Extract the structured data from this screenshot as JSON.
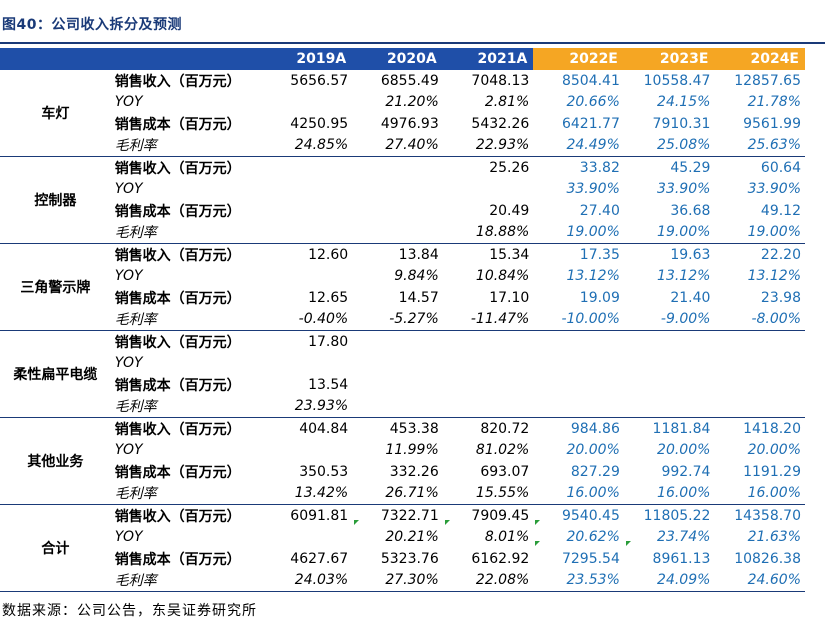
{
  "title": "图40：公司收入拆分及预测",
  "columns": {
    "hist": [
      "2019A",
      "2020A",
      "2021A"
    ],
    "forecast": [
      "2022E",
      "2023E",
      "2024E"
    ]
  },
  "segments": [
    {
      "name": "车灯",
      "rows": [
        {
          "label": "销售收入（百万元）",
          "values": [
            "5656.57",
            "6855.49",
            "7048.13",
            "8504.41",
            "10558.47",
            "12857.65"
          ]
        },
        {
          "label": "YOY",
          "values": [
            "",
            "21.20%",
            "2.81%",
            "20.66%",
            "24.15%",
            "21.78%"
          ]
        },
        {
          "label": "销售成本（百万元）",
          "values": [
            "4250.95",
            "4976.93",
            "5432.26",
            "6421.77",
            "7910.31",
            "9561.99"
          ]
        },
        {
          "label": "毛利率",
          "values": [
            "24.85%",
            "27.40%",
            "22.93%",
            "24.49%",
            "25.08%",
            "25.63%"
          ]
        }
      ]
    },
    {
      "name": "控制器",
      "rows": [
        {
          "label": "销售收入（百万元）",
          "values": [
            "",
            "",
            "25.26",
            "33.82",
            "45.29",
            "60.64"
          ]
        },
        {
          "label": "YOY",
          "values": [
            "",
            "",
            "",
            "33.90%",
            "33.90%",
            "33.90%"
          ]
        },
        {
          "label": "销售成本（百万元）",
          "values": [
            "",
            "",
            "20.49",
            "27.40",
            "36.68",
            "49.12"
          ]
        },
        {
          "label": "毛利率",
          "values": [
            "",
            "",
            "18.88%",
            "19.00%",
            "19.00%",
            "19.00%"
          ]
        }
      ]
    },
    {
      "name": "三角警示牌",
      "rows": [
        {
          "label": "销售收入（百万元）",
          "values": [
            "12.60",
            "13.84",
            "15.34",
            "17.35",
            "19.63",
            "22.20"
          ]
        },
        {
          "label": "YOY",
          "values": [
            "",
            "9.84%",
            "10.84%",
            "13.12%",
            "13.12%",
            "13.12%"
          ]
        },
        {
          "label": "销售成本（百万元）",
          "values": [
            "12.65",
            "14.57",
            "17.10",
            "19.09",
            "21.40",
            "23.98"
          ]
        },
        {
          "label": "毛利率",
          "values": [
            "-0.40%",
            "-5.27%",
            "-11.47%",
            "-10.00%",
            "-9.00%",
            "-8.00%"
          ]
        }
      ]
    },
    {
      "name": "柔性扁平电缆",
      "rows": [
        {
          "label": "销售收入（百万元）",
          "values": [
            "17.80",
            "",
            "",
            "",
            "",
            ""
          ]
        },
        {
          "label": "YOY",
          "values": [
            "",
            "",
            "",
            "",
            "",
            ""
          ]
        },
        {
          "label": "销售成本（百万元）",
          "values": [
            "13.54",
            "",
            "",
            "",
            "",
            ""
          ]
        },
        {
          "label": "毛利率",
          "values": [
            "23.93%",
            "",
            "",
            "",
            "",
            ""
          ]
        }
      ]
    },
    {
      "name": "其他业务",
      "rows": [
        {
          "label": "销售收入（百万元）",
          "values": [
            "404.84",
            "453.38",
            "820.72",
            "984.86",
            "1181.84",
            "1418.20"
          ]
        },
        {
          "label": "YOY",
          "values": [
            "",
            "11.99%",
            "81.02%",
            "20.00%",
            "20.00%",
            "20.00%"
          ]
        },
        {
          "label": "销售成本（百万元）",
          "values": [
            "350.53",
            "332.26",
            "693.07",
            "827.29",
            "992.74",
            "1191.29"
          ]
        },
        {
          "label": "毛利率",
          "values": [
            "13.42%",
            "26.71%",
            "15.55%",
            "16.00%",
            "16.00%",
            "16.00%"
          ]
        }
      ]
    },
    {
      "name": "合计",
      "rows": [
        {
          "label": "销售收入（百万元）",
          "values": [
            "6091.81",
            "7322.71",
            "7909.45",
            "9540.45",
            "11805.22",
            "14358.70"
          ]
        },
        {
          "label": "YOY",
          "values": [
            "",
            "20.21%",
            "8.01%",
            "20.62%",
            "23.74%",
            "21.63%"
          ]
        },
        {
          "label": "销售成本（百万元）",
          "values": [
            "4627.67",
            "5323.76",
            "6162.92",
            "7295.54",
            "8961.13",
            "10826.38"
          ]
        },
        {
          "label": "毛利率",
          "values": [
            "24.03%",
            "27.30%",
            "22.08%",
            "23.53%",
            "24.09%",
            "24.60%"
          ]
        }
      ]
    }
  ],
  "source": "数据来源：公司公告，东吴证券研究所",
  "colors": {
    "header_hist": "#1f4fa8",
    "header_forecast": "#f5a623",
    "forecast_text": "#1f6fb4",
    "rule": "#1a3a78"
  }
}
